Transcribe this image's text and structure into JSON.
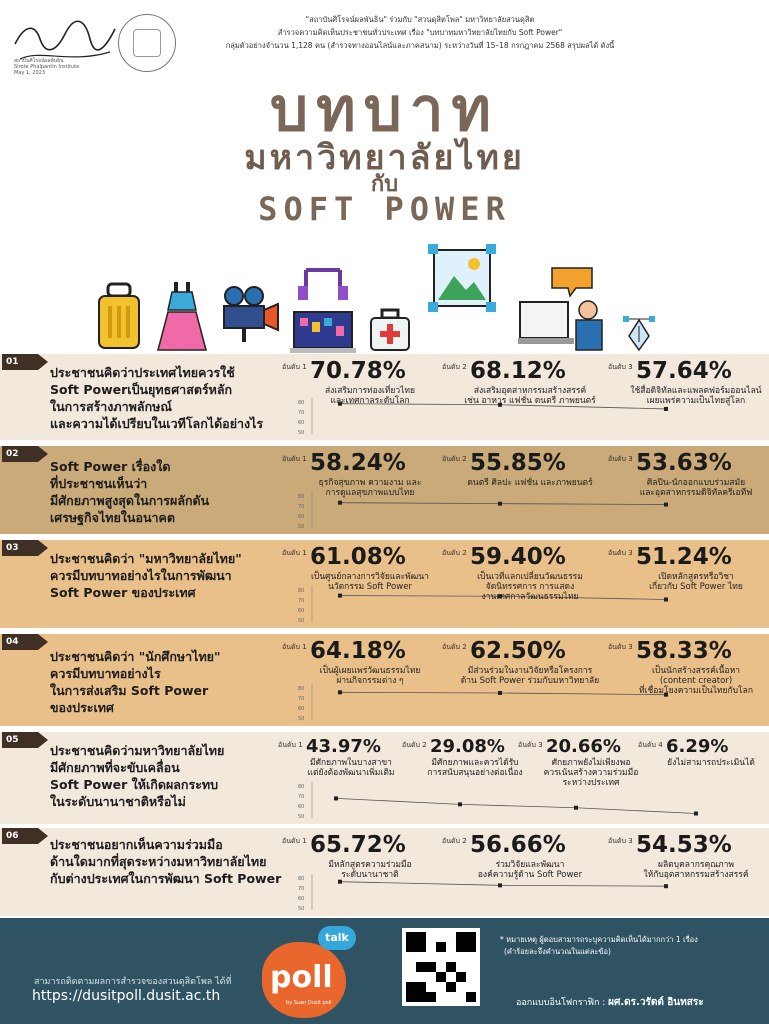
{
  "header": {
    "line1": "\"สถาบันศิโรจน์ผลพันธิน\" ร่วมกับ \"สวนดุสิตโพล\" มหาวิทยาลัยสวนดุสิต",
    "line2": "สำรวจความคิดเห็นประชาชนทั่วประเทศ เรื่อง \"บทบาทมหาวิทยาลัยไทยกับ Soft Power\"",
    "line3": "กลุ่มตัวอย่างจำนวน 1,128 คน (สำรวจทางออนไลน์และภาคสนาม) ระหว่างวันที่ 15–18 กรกฎาคม 2568 สรุปผลได้ ดังนี้",
    "sig_caption": "สถาบันศิโรจน์ผลพันธิน",
    "sig_caption2": "Sirote Phalpantin Institute",
    "sig_date": "May 1, 2023"
  },
  "title": {
    "line1": "บทบาท",
    "line2": "มหาวิทยาลัยไทย",
    "line3": "กับ",
    "line4": "SOFT POWER"
  },
  "icons": [
    "suitcase-icon",
    "dress-icon",
    "video-camera-icon",
    "music-laptop-icon",
    "first-aid-kit-icon",
    "image-frame-icon",
    "online-meeting-icon",
    "pen-tool-icon"
  ],
  "colors": {
    "light": "#f2e8dc",
    "tan": "#c9aa78",
    "peach": "#e9c08a",
    "footer": "#2f5363",
    "accent": "#e9672d"
  },
  "sections": [
    {
      "num": "01",
      "question": [
        "ประชาชนคิดว่าประเทศไทยควรใช้",
        "Soft Powerเป็นยุทธศาสตร์หลัก",
        "ในการสร้างภาพลักษณ์",
        "และความได้เปรียบในเวทีโลกได้อย่างไร"
      ],
      "items": [
        {
          "rank": "อันดับ 1",
          "pct": "70.78%",
          "value": 70.78,
          "desc": [
            "ส่งเสริมการท่องเที่ยวไทย",
            "และเทศกาลระดับโลก"
          ]
        },
        {
          "rank": "อันดับ 2",
          "pct": "68.12%",
          "value": 68.12,
          "desc": [
            "ส่งเสริมอุตสาหกรรมสร้างสรรค์",
            "เช่น อาหาร แฟชั่น ดนตรี ภาพยนตร์"
          ]
        },
        {
          "rank": "อันดับ 3",
          "pct": "57.64%",
          "value": 57.64,
          "desc": [
            "ใช้สื่อดิจิทัลและแพลตฟอร์มออนไลน์",
            "เผยแพร่ความเป็นไทยสู่โลก"
          ]
        }
      ]
    },
    {
      "num": "02",
      "question": [
        "Soft Power เรื่องใด",
        "ที่ประชาชนเห็นว่า",
        "มีศักยภาพสูงสุดในการผลักดัน",
        "เศรษฐกิจไทยในอนาคต"
      ],
      "items": [
        {
          "rank": "อันดับ 1",
          "pct": "58.24%",
          "value": 58.24,
          "desc": [
            "ธุรกิจสุขภาพ ความงาม และ",
            "การดูแลสุขภาพแบบไทย"
          ]
        },
        {
          "rank": "อันดับ 2",
          "pct": "55.85%",
          "value": 55.85,
          "desc": [
            "ดนตรี ศิลปะ แฟชั่น และภาพยนตร์"
          ]
        },
        {
          "rank": "อันดับ 3",
          "pct": "53.63%",
          "value": 53.63,
          "desc": [
            "ศิลปิน-นักออกแบบร่วมสมัย",
            "และอุตสาหกรรมดิจิทัลครีเอทีฟ"
          ]
        }
      ]
    },
    {
      "num": "03",
      "question": [
        "ประชาชนคิดว่า \"มหาวิทยาลัยไทย\"",
        "ควรมีบทบาทอย่างไรในการพัฒนา",
        "Soft Power ของประเทศ"
      ],
      "items": [
        {
          "rank": "อันดับ 1",
          "pct": "61.08%",
          "value": 61.08,
          "desc": [
            "เป็นศูนย์กลางการวิจัยและพัฒนา",
            "นวัตกรรม Soft Power"
          ]
        },
        {
          "rank": "อันดับ 2",
          "pct": "59.40%",
          "value": 59.4,
          "desc": [
            "เป็นเวทีแลกเปลี่ยนวัฒนธรรม",
            "จัดนิทรรศการ การแสดง",
            "งานเทศกาลวัฒนธรรมไทย"
          ]
        },
        {
          "rank": "อันดับ 3",
          "pct": "51.24%",
          "value": 51.24,
          "desc": [
            "เปิดหลักสูตรหรือวิชา",
            "เกี่ยวกับ Soft Power ไทย"
          ]
        }
      ]
    },
    {
      "num": "04",
      "question": [
        "ประชาชนคิดว่า \"นักศึกษาไทย\"",
        "ควรมีบทบาทอย่างไร",
        "ในการส่งเสริม Soft Power",
        "ของประเทศ"
      ],
      "items": [
        {
          "rank": "อันดับ 1",
          "pct": "64.18%",
          "value": 64.18,
          "desc": [
            "เป็นผู้เผยแพร่วัฒนธรรมไทย",
            "ผ่านกิจกรรมต่าง ๆ"
          ]
        },
        {
          "rank": "อันดับ 2",
          "pct": "62.50%",
          "value": 62.5,
          "desc": [
            "มีส่วนร่วมในงานวิจัยหรือโครงการ",
            "ด้าน Soft Power ร่วมกับมหาวิทยาลัย"
          ]
        },
        {
          "rank": "อันดับ 3",
          "pct": "58.33%",
          "value": 58.33,
          "desc": [
            "เป็นนักสร้างสรรค์เนื้อหา",
            "(content creator)",
            "ที่เชื่อมโยงความเป็นไทยกับโลก"
          ]
        }
      ]
    },
    {
      "num": "05",
      "question": [
        "ประชาชนคิดว่ามหาวิทยาลัยไทย",
        "มีศักยภาพที่จะขับเคลื่อน",
        "Soft Power ให้เกิดผลกระทบ",
        "ในระดับนานาชาติหรือไม่"
      ],
      "items": [
        {
          "rank": "อันดับ 1",
          "pct": "43.97%",
          "value": 43.97,
          "desc": [
            "มีศักยภาพในบางสาขา",
            "แต่ยังต้องพัฒนาเพิ่มเติม"
          ]
        },
        {
          "rank": "อันดับ 2",
          "pct": "29.08%",
          "value": 29.08,
          "desc": [
            "มีศักยภาพและควรได้รับ",
            "การสนับสนุนอย่างต่อเนื่อง"
          ]
        },
        {
          "rank": "อันดับ 3",
          "pct": "20.66%",
          "value": 20.66,
          "desc": [
            "ศักยภาพยังไม่เพียงพอ",
            "ควรเน้นสร้างความร่วมมือ",
            "ระหว่างประเทศ"
          ]
        },
        {
          "rank": "อันดับ 4",
          "pct": "6.29%",
          "value": 6.29,
          "desc": [
            "ยังไม่สามารถประเมินได้"
          ]
        }
      ]
    },
    {
      "num": "06",
      "question": [
        "ประชาชนอยากเห็นความร่วมมือ",
        "ด้านใดมากที่สุดระหว่างมหาวิทยาลัยไทย",
        "กับต่างประเทศในการพัฒนา Soft Power"
      ],
      "items": [
        {
          "rank": "อันดับ 1",
          "pct": "65.72%",
          "value": 65.72,
          "desc": [
            "มีหลักสูตรความร่วมมือ",
            "ระดับนานาชาติ"
          ]
        },
        {
          "rank": "อันดับ 2",
          "pct": "56.66%",
          "value": 56.66,
          "desc": [
            "ร่วมวิจัยและพัฒนา",
            "องค์ความรู้ด้าน Soft Power"
          ]
        },
        {
          "rank": "อันดับ 3",
          "pct": "54.53%",
          "value": 54.53,
          "desc": [
            "ผลิตบุคลากรคุณภาพ",
            "ให้กับอุตสาหกรรมสร้างสรรค์"
          ]
        }
      ]
    }
  ],
  "chart_ticks": [
    "80",
    "70",
    "60",
    "50"
  ],
  "footer": {
    "follow": "สามารถติดตามผลการสำรวจของสวนดุสิตโพล ได้ที่",
    "url": "https://dusitpoll.dusit.ac.th",
    "talk": "talk",
    "poll": "poll",
    "poll_sub": "by Suan Dusit poll",
    "note1": "* หมายเหตุ  ผู้ตอบสามารถระบุความคิดเห็นได้มากกว่า 1 เรื่อง",
    "note2": "(คำร้อยละจึงคำนวณในแต่ละข้อ)",
    "design_label": "ออกแบบอินโฟกราฟิก : ",
    "designer": "ผศ.ดร.วรัตต์ อินทสระ"
  }
}
